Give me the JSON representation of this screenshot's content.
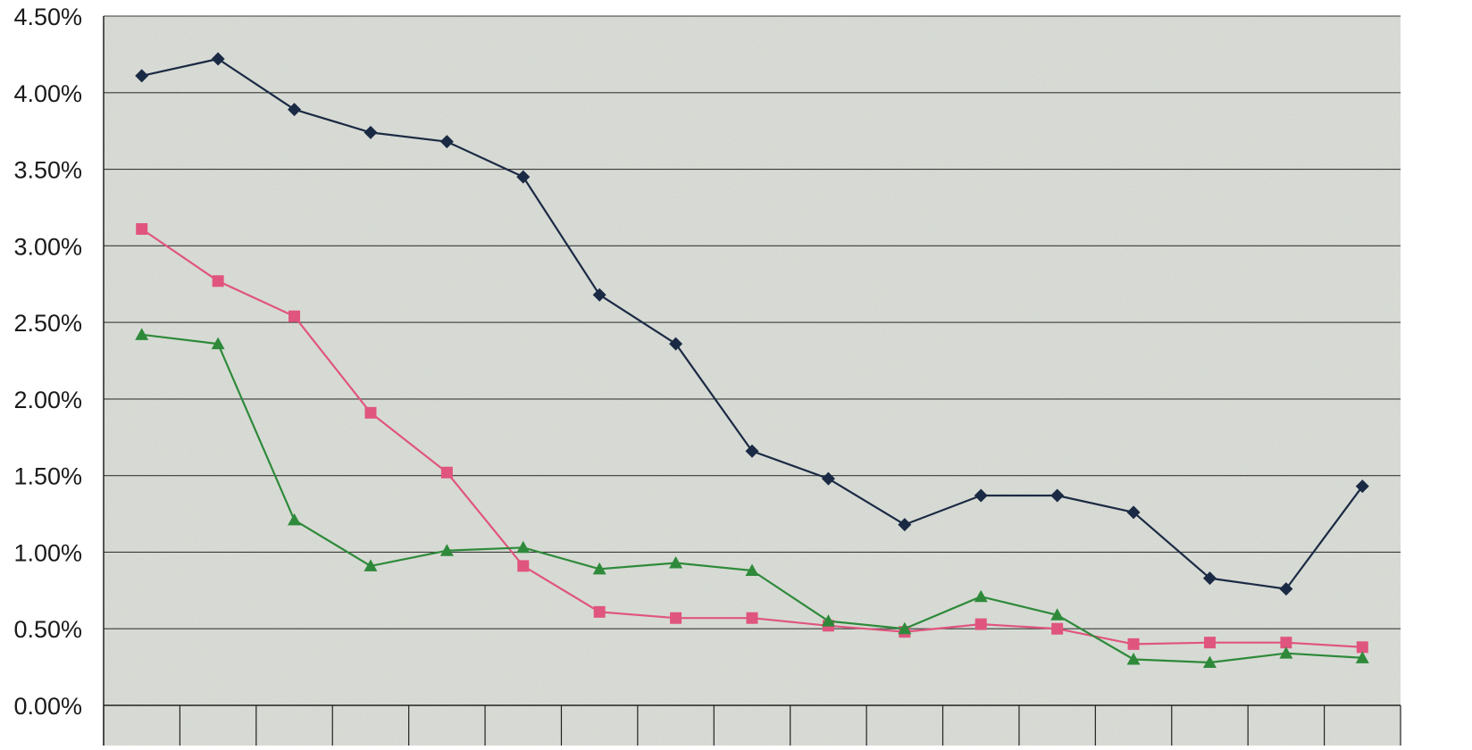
{
  "chart_data": {
    "type": "line",
    "title": "",
    "xlabel": "",
    "ylabel": "",
    "ylim": [
      0,
      0.045
    ],
    "y_ticks": [
      "0.00%",
      "0.50%",
      "1.00%",
      "1.50%",
      "2.00%",
      "2.50%",
      "3.00%",
      "3.50%",
      "4.00%",
      "4.50%"
    ],
    "y_tick_values": [
      0,
      0.005,
      0.01,
      0.015,
      0.02,
      0.025,
      0.03,
      0.035,
      0.04,
      0.045
    ],
    "category_count": 17,
    "grid": "horizontal",
    "legend": "none",
    "colors": {
      "plot_background": "#d9ddd6",
      "gridline": "#3a3a3a",
      "axis": "#222222"
    },
    "series": [
      {
        "color": "#1b2a44",
        "marker": "diamond",
        "values": [
          0.0411,
          0.0422,
          0.0389,
          0.0374,
          0.0368,
          0.0345,
          0.0268,
          0.0236,
          0.0166,
          0.0148,
          0.0118,
          0.0137,
          0.0137,
          0.0126,
          0.0083,
          0.0076,
          0.0143
        ]
      },
      {
        "color": "#e0557e",
        "marker": "square",
        "values": [
          0.0311,
          0.0277,
          0.0254,
          0.0191,
          0.0152,
          0.0091,
          0.0061,
          0.0057,
          0.0057,
          0.0052,
          0.0048,
          0.0053,
          0.005,
          0.004,
          0.0041,
          0.0041,
          0.0038
        ]
      },
      {
        "color": "#2e8a3a",
        "marker": "triangle",
        "values": [
          0.0242,
          0.0236,
          0.0121,
          0.0091,
          0.0101,
          0.0103,
          0.0089,
          0.0093,
          0.0088,
          0.0055,
          0.005,
          0.0071,
          0.0059,
          0.003,
          0.0028,
          0.0034,
          0.0031
        ]
      }
    ]
  }
}
